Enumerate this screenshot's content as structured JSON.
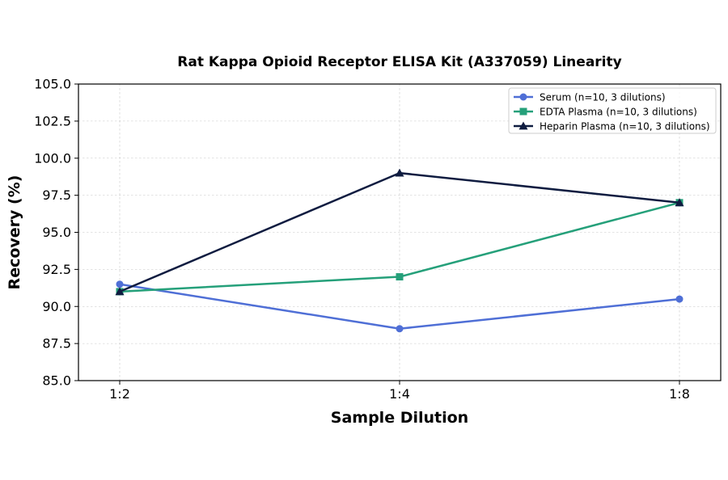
{
  "chart_data": {
    "type": "line",
    "title": "Rat Kappa Opioid Receptor ELISA Kit (A337059) Linearity",
    "xlabel": "Sample Dilution",
    "ylabel": "Recovery (%)",
    "categories": [
      "1:2",
      "1:4",
      "1:8"
    ],
    "ylim": [
      85.0,
      105.0
    ],
    "yticks": [
      "85.0",
      "87.5",
      "90.0",
      "92.5",
      "95.0",
      "97.5",
      "100.0",
      "102.5",
      "105.0"
    ],
    "grid": true,
    "legend_position": "top-right",
    "series": [
      {
        "name": "Serum (n=10, 3 dilutions)",
        "values": [
          91.5,
          88.5,
          90.5
        ],
        "color": "#4f6fd6",
        "marker": "circle"
      },
      {
        "name": "EDTA Plasma (n=10, 3 dilutions)",
        "values": [
          91.0,
          92.0,
          97.0
        ],
        "color": "#25a07a",
        "marker": "square"
      },
      {
        "name": "Heparin Plasma (n=10, 3 dilutions)",
        "values": [
          91.0,
          99.0,
          97.0
        ],
        "color": "#0f1c40",
        "marker": "triangle"
      }
    ]
  }
}
